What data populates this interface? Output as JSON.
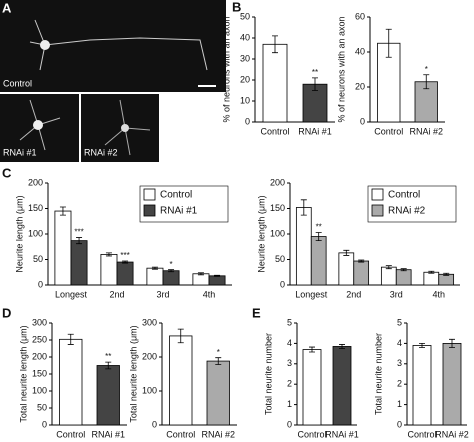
{
  "images": {
    "panel": "A",
    "labels": [
      "Control",
      "RNAi #1",
      "RNAi #2"
    ]
  },
  "chart_data": [
    {
      "type": "bar",
      "panel": "B",
      "ylabel": "% of neurons with an axon",
      "categories": [
        "Control",
        "RNAi #1"
      ],
      "values": [
        37,
        18
      ],
      "errors": [
        4,
        3
      ],
      "colors": [
        "#ffffff",
        "#444444"
      ],
      "annotations": [
        null,
        "**"
      ],
      "ylim": [
        0,
        50
      ],
      "yticks": [
        0,
        10,
        20,
        30,
        40,
        50
      ]
    },
    {
      "type": "bar",
      "ylabel": "% of neurons with an axon",
      "categories": [
        "Control",
        "RNAi #2"
      ],
      "values": [
        45,
        23
      ],
      "errors": [
        8,
        4
      ],
      "colors": [
        "#ffffff",
        "#aaaaaa"
      ],
      "annotations": [
        null,
        "*"
      ],
      "ylim": [
        0,
        60
      ],
      "yticks": [
        0,
        20,
        40,
        60
      ]
    },
    {
      "type": "grouped-bar",
      "panel": "C",
      "ylabel": "Neurite length (μm)",
      "categories": [
        "Longest",
        "2nd",
        "3rd",
        "4th"
      ],
      "legend": "upper right",
      "series": [
        {
          "name": "Control",
          "color": "#ffffff",
          "values": [
            145,
            60,
            33,
            22
          ],
          "errors": [
            8,
            3,
            2,
            2
          ],
          "annotations": [
            null,
            null,
            null,
            null
          ]
        },
        {
          "name": "RNAi #1",
          "color": "#444444",
          "values": [
            87,
            45,
            28,
            18
          ],
          "errors": [
            6,
            2,
            2,
            1
          ],
          "annotations": [
            "***",
            "***",
            "*",
            null
          ]
        }
      ],
      "ylim": [
        0,
        200
      ],
      "yticks": [
        0,
        50,
        100,
        150,
        200
      ]
    },
    {
      "type": "grouped-bar",
      "ylabel": "Neurite length (μm)",
      "categories": [
        "Longest",
        "2nd",
        "3rd",
        "4th"
      ],
      "legend": "upper right",
      "series": [
        {
          "name": "Control",
          "color": "#ffffff",
          "values": [
            152,
            63,
            35,
            25
          ],
          "errors": [
            15,
            5,
            3,
            2
          ],
          "annotations": [
            null,
            null,
            null,
            null
          ]
        },
        {
          "name": "RNAi #2",
          "color": "#aaaaaa",
          "values": [
            95,
            47,
            30,
            21
          ],
          "errors": [
            8,
            2,
            2,
            2
          ],
          "annotations": [
            "**",
            null,
            null,
            null
          ]
        }
      ],
      "ylim": [
        0,
        200
      ],
      "yticks": [
        0,
        50,
        100,
        150,
        200
      ]
    },
    {
      "type": "bar",
      "panel": "D",
      "ylabel": "Total neurite length (μm)",
      "categories": [
        "Control",
        "RNAi #1"
      ],
      "values": [
        252,
        175
      ],
      "errors": [
        15,
        10
      ],
      "colors": [
        "#ffffff",
        "#444444"
      ],
      "annotations": [
        null,
        "**"
      ],
      "ylim": [
        0,
        300
      ],
      "yticks": [
        0,
        50,
        100,
        150,
        200,
        250,
        300
      ]
    },
    {
      "type": "bar",
      "ylabel": "Total neurite length (μm)",
      "categories": [
        "Control",
        "RNAi #2"
      ],
      "values": [
        262,
        188
      ],
      "errors": [
        20,
        10
      ],
      "colors": [
        "#ffffff",
        "#aaaaaa"
      ],
      "annotations": [
        null,
        "*"
      ],
      "ylim": [
        0,
        300
      ],
      "yticks": [
        0,
        100,
        200,
        300
      ]
    },
    {
      "type": "bar",
      "panel": "E",
      "ylabel": "Total neurite number",
      "categories": [
        "Control",
        "RNAi #1"
      ],
      "values": [
        3.7,
        3.85
      ],
      "errors": [
        0.12,
        0.1
      ],
      "colors": [
        "#ffffff",
        "#444444"
      ],
      "annotations": [
        null,
        null
      ],
      "ylim": [
        0,
        5
      ],
      "yticks": [
        0,
        1,
        2,
        3,
        4,
        5
      ]
    },
    {
      "type": "bar",
      "ylabel": "Total neurite number",
      "categories": [
        "Control",
        "RNAi #2"
      ],
      "values": [
        3.9,
        4.0
      ],
      "errors": [
        0.1,
        0.2
      ],
      "colors": [
        "#ffffff",
        "#aaaaaa"
      ],
      "annotations": [
        null,
        null
      ],
      "ylim": [
        0,
        5
      ],
      "yticks": [
        0,
        1,
        2,
        3,
        4,
        5
      ]
    }
  ]
}
